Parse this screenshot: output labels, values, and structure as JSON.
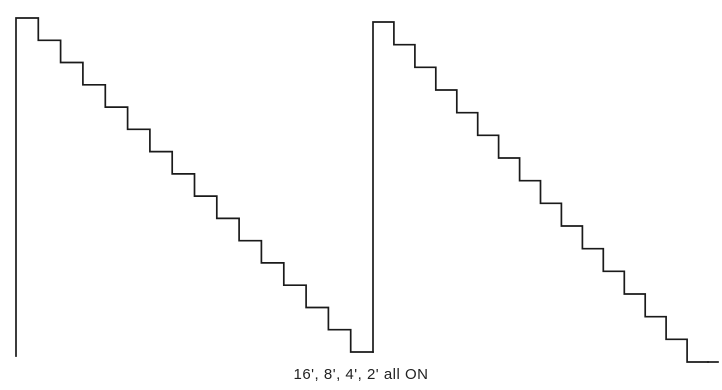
{
  "caption": "16', 8', 4', 2'  all ON",
  "diagram": {
    "type": "stepped-sawtooth-waveform",
    "periods": 2,
    "steps_per_period": 16,
    "stroke_color": "#1a1a1a"
  }
}
